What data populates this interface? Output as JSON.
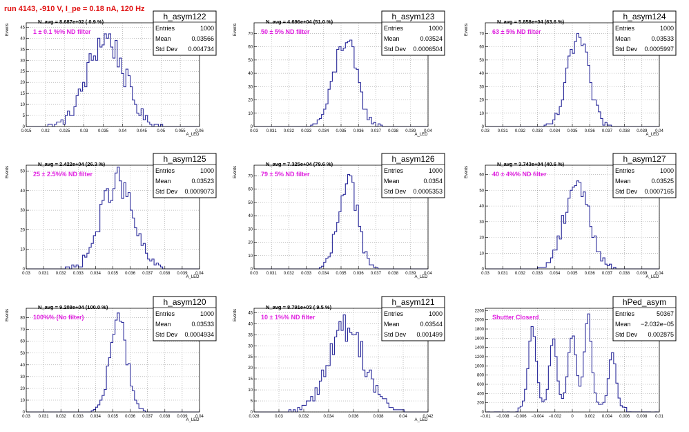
{
  "run_title": "run 4143,  -910 V, I_pe = 0.18 nA, 120 Hz",
  "colors": {
    "line": "#2a2a9a",
    "filter_text": "#e020e0",
    "title_text": "#e01010"
  },
  "stats_labels": {
    "entries": "Entries",
    "mean": "Mean",
    "std": "Std Dev"
  },
  "chart_data": [
    {
      "type": "histogram",
      "name": "h_asym122",
      "navg": "N_avg = 8.687e+02 ( 0.9 %)",
      "filter": "1 ± 0.1 %% ND filter",
      "stats": {
        "entries": "1000",
        "mean": "0.03566",
        "std": "0.004734"
      },
      "xlim": [
        0.015,
        0.06
      ],
      "ylim": [
        0,
        47
      ],
      "xticks": [
        0.015,
        0.02,
        0.025,
        0.03,
        0.035,
        0.04,
        0.045,
        0.05,
        0.055,
        0.06
      ],
      "xtick_labels": [
        "0.015",
        "0.02",
        "0.025",
        "0.03",
        "0.035",
        "0.04",
        "0.045",
        "0.05",
        "0.055",
        "0.06"
      ],
      "yticks": [
        0,
        5,
        10,
        15,
        20,
        25,
        30,
        35,
        40,
        45
      ],
      "ytick_labels": [
        "0",
        "5",
        "10",
        "15",
        "20",
        "25",
        "30",
        "35",
        "40",
        "45"
      ],
      "xlabel": "A_LED",
      "ylabel": "Events",
      "curve": {
        "mean": 0.03566,
        "sigma": 0.004734,
        "peak": 40
      }
    },
    {
      "type": "histogram",
      "name": "h_asym123",
      "navg": "N_avg = 4.696e+04 (51.0 %)",
      "filter": "50 ± 5% ND filter",
      "stats": {
        "entries": "1000",
        "mean": "0.03524",
        "std": "0.0006504"
      },
      "xlim": [
        0.03,
        0.04
      ],
      "ylim": [
        0,
        78
      ],
      "xticks": [
        0.03,
        0.031,
        0.032,
        0.033,
        0.034,
        0.035,
        0.036,
        0.037,
        0.038,
        0.039,
        0.04
      ],
      "xtick_labels": [
        "0.03",
        "0.031",
        "0.032",
        "0.033",
        "0.034",
        "0.035",
        "0.036",
        "0.037",
        "0.038",
        "0.039",
        "0.04"
      ],
      "yticks": [
        0,
        10,
        20,
        30,
        40,
        50,
        60,
        70
      ],
      "ytick_labels": [
        "0",
        "10",
        "20",
        "30",
        "40",
        "50",
        "60",
        "70"
      ],
      "xlabel": "A_LED",
      "ylabel": "Events",
      "curve": {
        "mean": 0.03524,
        "sigma": 0.0006504,
        "peak": 65
      }
    },
    {
      "type": "histogram",
      "name": "h_asym124",
      "navg": "N_avg = 5.858e+04 (63.6 %)",
      "filter": "63 ± 5% ND filter",
      "stats": {
        "entries": "1000",
        "mean": "0.03533",
        "std": "0.0005997"
      },
      "xlim": [
        0.03,
        0.04
      ],
      "ylim": [
        0,
        78
      ],
      "xticks": [
        0.03,
        0.031,
        0.032,
        0.033,
        0.034,
        0.035,
        0.036,
        0.037,
        0.038,
        0.039,
        0.04
      ],
      "xtick_labels": [
        "0.03",
        "0.031",
        "0.032",
        "0.033",
        "0.034",
        "0.035",
        "0.036",
        "0.037",
        "0.038",
        "0.039",
        "0.04"
      ],
      "yticks": [
        0,
        10,
        20,
        30,
        40,
        50,
        60,
        70
      ],
      "ytick_labels": [
        "0",
        "10",
        "20",
        "30",
        "40",
        "50",
        "60",
        "70"
      ],
      "xlabel": "A_LED",
      "ylabel": "Events",
      "curve": {
        "mean": 0.03533,
        "sigma": 0.0005997,
        "peak": 66
      }
    },
    {
      "type": "histogram",
      "name": "h_asym125",
      "navg": "N_avg = 2.422e+04 (26.3 %)",
      "filter": "25 ± 2.5%% ND filter",
      "stats": {
        "entries": "1000",
        "mean": "0.03523",
        "std": "0.0009073"
      },
      "xlim": [
        0.03,
        0.04
      ],
      "ylim": [
        0,
        53
      ],
      "xticks": [
        0.03,
        0.031,
        0.032,
        0.033,
        0.034,
        0.035,
        0.036,
        0.037,
        0.038,
        0.039,
        0.04
      ],
      "xtick_labels": [
        "0.03",
        "0.031",
        "0.032",
        "0.033",
        "0.034",
        "0.035",
        "0.036",
        "0.037",
        "0.038",
        "0.039",
        "0.04"
      ],
      "yticks": [
        0,
        10,
        20,
        30,
        40,
        50
      ],
      "ytick_labels": [
        "0",
        "10",
        "20",
        "30",
        "40",
        "50"
      ],
      "xlabel": "A_LED",
      "ylabel": "Events",
      "curve": {
        "mean": 0.03523,
        "sigma": 0.0009073,
        "peak": 45
      }
    },
    {
      "type": "histogram",
      "name": "h_asym126",
      "navg": "N_avg = 7.325e+04 (79.6 %)",
      "filter": "79 ± 5% ND filter",
      "stats": {
        "entries": "1000",
        "mean": "0.0354",
        "std": "0.0005353"
      },
      "xlim": [
        0.03,
        0.04
      ],
      "ylim": [
        0,
        78
      ],
      "xticks": [
        0.03,
        0.031,
        0.032,
        0.033,
        0.034,
        0.035,
        0.036,
        0.037,
        0.038,
        0.039,
        0.04
      ],
      "xtick_labels": [
        "0.03",
        "0.031",
        "0.032",
        "0.033",
        "0.034",
        "0.035",
        "0.036",
        "0.037",
        "0.038",
        "0.039",
        "0.04"
      ],
      "yticks": [
        0,
        10,
        20,
        30,
        40,
        50,
        60,
        70
      ],
      "ytick_labels": [
        "0",
        "10",
        "20",
        "30",
        "40",
        "50",
        "60",
        "70"
      ],
      "xlabel": "A_LED",
      "ylabel": "Events",
      "curve": {
        "mean": 0.0354,
        "sigma": 0.0005353,
        "peak": 70
      }
    },
    {
      "type": "histogram",
      "name": "h_asym127",
      "navg": "N_avg = 3.743e+04 (40.6 %)",
      "filter": "40 ± 4%% ND filter",
      "stats": {
        "entries": "1000",
        "mean": "0.03525",
        "std": "0.0007165"
      },
      "xlim": [
        0.03,
        0.04
      ],
      "ylim": [
        0,
        66
      ],
      "xticks": [
        0.03,
        0.031,
        0.032,
        0.033,
        0.034,
        0.035,
        0.036,
        0.037,
        0.038,
        0.039,
        0.04
      ],
      "xtick_labels": [
        "0.03",
        "0.031",
        "0.032",
        "0.033",
        "0.034",
        "0.035",
        "0.036",
        "0.037",
        "0.038",
        "0.039",
        "0.04"
      ],
      "yticks": [
        0,
        10,
        20,
        30,
        40,
        50,
        60
      ],
      "ytick_labels": [
        "0",
        "10",
        "20",
        "30",
        "40",
        "50",
        "60"
      ],
      "xlabel": "A_LED",
      "ylabel": "Events",
      "curve": {
        "mean": 0.03525,
        "sigma": 0.0007165,
        "peak": 56
      }
    },
    {
      "type": "histogram",
      "name": "h_asym120",
      "navg": "N_avg = 9.208e+04 (100.0 %)",
      "filter": "100%% (No filter)",
      "stats": {
        "entries": "1000",
        "mean": "0.03533",
        "std": "0.0004934"
      },
      "xlim": [
        0.03,
        0.04
      ],
      "ylim": [
        0,
        88
      ],
      "xticks": [
        0.03,
        0.031,
        0.032,
        0.033,
        0.034,
        0.035,
        0.036,
        0.037,
        0.038,
        0.039,
        0.04
      ],
      "xtick_labels": [
        "0.03",
        "0.031",
        "0.032",
        "0.033",
        "0.034",
        "0.035",
        "0.036",
        "0.037",
        "0.038",
        "0.039",
        "0.04"
      ],
      "yticks": [
        0,
        10,
        20,
        30,
        40,
        50,
        60,
        70,
        80
      ],
      "ytick_labels": [
        "0",
        "10",
        "20",
        "30",
        "40",
        "50",
        "60",
        "70",
        "80"
      ],
      "xlabel": "A_LED",
      "ylabel": "Events",
      "curve": {
        "mean": 0.03533,
        "sigma": 0.0004934,
        "peak": 78
      }
    },
    {
      "type": "histogram",
      "name": "h_asym121",
      "navg": "N_avg = 8.791e+03 ( 9.5 %)",
      "filter": "10 ± 1%% ND filter",
      "stats": {
        "entries": "1000",
        "mean": "0.03544",
        "std": "0.001499"
      },
      "xlim": [
        0.028,
        0.042
      ],
      "ylim": [
        0,
        47
      ],
      "xticks": [
        0.028,
        0.03,
        0.032,
        0.034,
        0.036,
        0.038,
        0.04,
        0.042
      ],
      "xtick_labels": [
        "0.028",
        "0.03",
        "0.032",
        "0.034",
        "0.036",
        "0.038",
        "0.04",
        "0.042"
      ],
      "yticks": [
        0,
        5,
        10,
        15,
        20,
        25,
        30,
        35,
        40,
        45
      ],
      "ytick_labels": [
        "0",
        "5",
        "10",
        "15",
        "20",
        "25",
        "30",
        "35",
        "40",
        "45"
      ],
      "xlabel": "A_LED",
      "ylabel": "Events",
      "curve": {
        "mean": 0.03544,
        "sigma": 0.001499,
        "peak": 38
      }
    },
    {
      "type": "histogram",
      "name": "hPed_asym",
      "navg": "",
      "filter": "Shutter Closerd",
      "stats": {
        "entries": "50367",
        "mean": "−2.032e−05",
        "std": "0.002875"
      },
      "xlim": [
        -0.01,
        0.01
      ],
      "ylim": [
        0,
        2250
      ],
      "xticks": [
        -0.01,
        -0.008,
        -0.006,
        -0.004,
        -0.002,
        0,
        0.002,
        0.004,
        0.006,
        0.008,
        0.01
      ],
      "xtick_labels": [
        "−0.01",
        "−0.008",
        "−0.006",
        "−0.004",
        "−0.002",
        "0",
        "0.002",
        "0.004",
        "0.006",
        "0.008",
        "0.01"
      ],
      "yticks": [
        0,
        200,
        400,
        600,
        800,
        1000,
        1200,
        1400,
        1600,
        1800,
        2000,
        2200
      ],
      "ytick_labels": [
        "0",
        "200",
        "400",
        "600",
        "800",
        "1000",
        "1200",
        "1400",
        "1600",
        "1800",
        "2000",
        "2200"
      ],
      "xlabel": "",
      "ylabel": "",
      "peaks": [
        {
          "mean": -0.0046,
          "sigma": 0.00045,
          "height": 1700
        },
        {
          "mean": -0.0022,
          "sigma": 0.0004,
          "height": 1400
        },
        {
          "mean": 0.0,
          "sigma": 0.00045,
          "height": 1500
        },
        {
          "mean": 0.0018,
          "sigma": 0.0004,
          "height": 1950
        },
        {
          "mean": 0.0046,
          "sigma": 0.0004,
          "height": 1200
        }
      ],
      "baseline": 80
    }
  ]
}
